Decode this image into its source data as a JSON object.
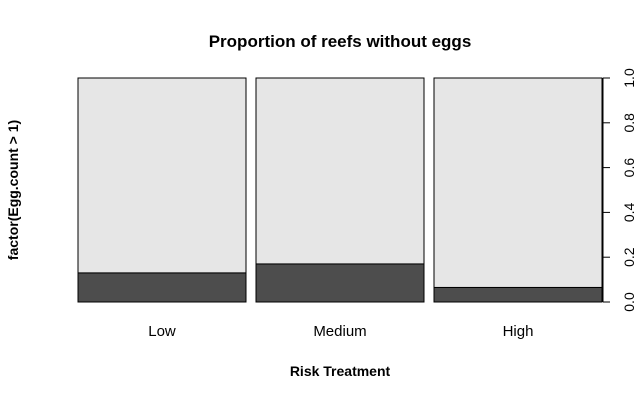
{
  "chart_data": {
    "type": "bar",
    "subtype": "stacked-proportion (spineplot)",
    "title": "Proportion of reefs without eggs",
    "xlabel": "Risk Treatment",
    "ylabel": "factor(Egg.count > 1)",
    "categories": [
      "Low",
      "Medium",
      "High"
    ],
    "series": [
      {
        "values": [
          0.13,
          0.17,
          0.065
        ],
        "color": "#4d4d4d"
      },
      {
        "values": [
          0.87,
          0.83,
          0.935
        ],
        "color": "#e6e6e6"
      }
    ],
    "ylim": [
      0,
      1
    ],
    "yticks": [
      "0.0",
      "0.2",
      "0.4",
      "0.6",
      "0.8",
      "1.0"
    ],
    "y_axis_side": "right",
    "grid": false,
    "legend": "none"
  }
}
